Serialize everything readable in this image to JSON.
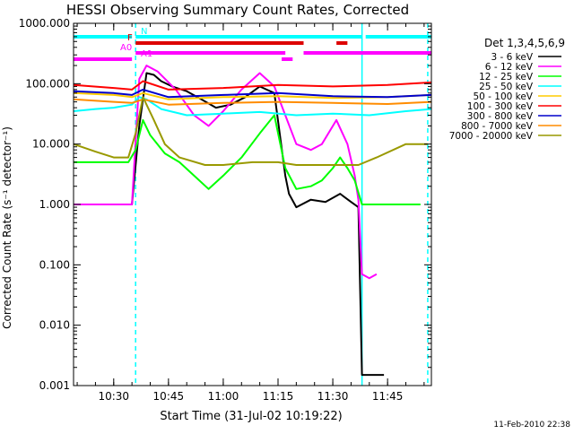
{
  "chart_data": {
    "type": "line",
    "title": "HESSI Observing Summary Count Rates, Corrected",
    "xlabel": "Start Time (31-Jul-02 10:19:22)",
    "ylabel": "Corrected Count Rate (s⁻¹ detector⁻¹)",
    "yscale": "log",
    "ylim": [
      0.001,
      1000
    ],
    "xlim": [
      "10:19",
      "11:57"
    ],
    "x_ticks": [
      "10:30",
      "10:45",
      "11:00",
      "11:15",
      "11:30",
      "11:45"
    ],
    "y_ticks": [
      "1000.000",
      "100.000",
      "10.000",
      "1.000",
      "0.100",
      "0.010",
      "0.001"
    ],
    "footer": "11-Feb-2010 22:38",
    "legend": {
      "title": "Det 1,3,4,5,6,9",
      "placement": "right-outside"
    },
    "series": [
      {
        "name": "3 - 6 keV",
        "color": "#000000",
        "x": [
          "10:33",
          "10:35",
          "10:37",
          "10:39",
          "10:41",
          "10:43",
          "10:46",
          "10:50",
          "10:54",
          "10:58",
          "11:02",
          "11:06",
          "11:10",
          "11:14",
          "11:17",
          "11:18",
          "11:20",
          "11:24",
          "11:28",
          "11:32",
          "11:35",
          "11:37",
          "11:38",
          "11:42",
          "11:44"
        ],
        "y": [
          1.0,
          1.0,
          20,
          150,
          140,
          110,
          90,
          75,
          55,
          40,
          45,
          60,
          90,
          70,
          3.0,
          1.5,
          0.9,
          1.2,
          1.1,
          1.5,
          1.1,
          0.9,
          0.0015,
          0.0015,
          0.0015
        ]
      },
      {
        "name": "6 - 12 keV",
        "color": "#ff00ff",
        "x": [
          "10:19",
          "10:30",
          "10:35",
          "10:37",
          "10:39",
          "10:42",
          "10:47",
          "10:52",
          "10:56",
          "11:00",
          "11:05",
          "11:10",
          "11:14",
          "11:17",
          "11:20",
          "11:24",
          "11:27",
          "11:31",
          "11:34",
          "11:36",
          "11:37",
          "11:38",
          "11:40",
          "11:42"
        ],
        "y": [
          1.0,
          1.0,
          1.0,
          120,
          200,
          160,
          80,
          30,
          20,
          35,
          80,
          150,
          90,
          30,
          10,
          8,
          10,
          25,
          10,
          3,
          1.2,
          0.07,
          0.06,
          0.07
        ]
      },
      {
        "name": "12 - 25 keV",
        "color": "#00ff00",
        "x": [
          "10:19",
          "10:25",
          "10:30",
          "10:34",
          "10:36",
          "10:38",
          "10:40",
          "10:44",
          "10:48",
          "10:52",
          "10:56",
          "11:00",
          "11:05",
          "11:10",
          "11:14",
          "11:17",
          "11:20",
          "11:24",
          "11:27",
          "11:30",
          "11:32",
          "11:34",
          "11:36",
          "11:38",
          "11:42",
          "11:50",
          "11:54"
        ],
        "y": [
          5,
          5,
          5,
          5,
          8,
          25,
          14,
          7,
          5,
          3,
          1.8,
          3,
          6,
          15,
          30,
          4,
          1.8,
          2,
          2.5,
          4,
          6,
          4,
          2.5,
          1.0,
          1.0,
          1.0,
          1.0
        ]
      },
      {
        "name": "25 - 50 keV",
        "color": "#00ffff",
        "x": [
          "10:19",
          "10:25",
          "10:30",
          "10:35",
          "10:37",
          "10:39",
          "10:43",
          "10:50",
          "11:00",
          "11:10",
          "11:20",
          "11:30",
          "11:40",
          "11:50",
          "11:57"
        ],
        "y": [
          35,
          38,
          40,
          45,
          60,
          55,
          38,
          30,
          32,
          34,
          30,
          32,
          30,
          35,
          38
        ]
      },
      {
        "name": "50 - 100 keV",
        "color": "#ffcc00",
        "x": [
          "10:19",
          "10:30",
          "10:35",
          "10:38",
          "10:45",
          "11:00",
          "11:15",
          "11:30",
          "11:45",
          "11:57"
        ],
        "y": [
          70,
          65,
          60,
          70,
          55,
          60,
          62,
          58,
          60,
          65
        ]
      },
      {
        "name": "100 - 300 keV",
        "color": "#ff0000",
        "x": [
          "10:19",
          "10:30",
          "10:35",
          "10:38",
          "10:45",
          "11:00",
          "11:15",
          "11:30",
          "11:45",
          "11:57"
        ],
        "y": [
          95,
          85,
          80,
          110,
          80,
          85,
          95,
          90,
          95,
          105
        ]
      },
      {
        "name": "300 - 800 keV",
        "color": "#0000cc",
        "x": [
          "10:19",
          "10:30",
          "10:35",
          "10:38",
          "10:45",
          "11:00",
          "11:15",
          "11:30",
          "11:45",
          "11:57"
        ],
        "y": [
          75,
          70,
          65,
          80,
          60,
          65,
          70,
          62,
          60,
          65
        ]
      },
      {
        "name": "800 - 7000 keV",
        "color": "#ff8c00",
        "x": [
          "10:19",
          "10:30",
          "10:35",
          "10:38",
          "10:45",
          "11:00",
          "11:15",
          "11:30",
          "11:45",
          "11:57"
        ],
        "y": [
          55,
          50,
          48,
          55,
          45,
          48,
          50,
          48,
          46,
          50
        ]
      },
      {
        "name": "7000 - 20000 keV",
        "color": "#999900",
        "x": [
          "10:19",
          "10:25",
          "10:30",
          "10:34",
          "10:36",
          "10:38",
          "10:41",
          "10:44",
          "10:48",
          "10:55",
          "11:00",
          "11:08",
          "11:15",
          "11:20",
          "11:28",
          "11:33",
          "11:37",
          "11:42",
          "11:50",
          "11:56"
        ],
        "y": [
          10,
          7.5,
          6,
          6,
          15,
          60,
          25,
          10,
          6,
          4.5,
          4.5,
          5,
          5,
          4.5,
          4.5,
          4.5,
          4.5,
          6,
          10,
          10
        ]
      }
    ],
    "flag_bars": [
      {
        "label": "N",
        "color": "#00ffff",
        "level": 1,
        "segments": [
          [
            "10:19",
            "10:35"
          ],
          [
            "10:36",
            "11:38"
          ],
          [
            "11:39",
            "11:57"
          ]
        ]
      },
      {
        "label": "F",
        "color": "#dd0000",
        "level": 2,
        "segments": [
          [
            "10:36",
            "11:22"
          ],
          [
            "11:31",
            "11:34"
          ]
        ]
      },
      {
        "label": "A0",
        "color": "#ff00ff",
        "level": 3,
        "segments": [
          [
            "10:36",
            "11:17"
          ],
          [
            "11:22",
            "11:57"
          ]
        ]
      },
      {
        "label": "A1",
        "color": "#ff00ff",
        "level": 4,
        "segments": [
          [
            "10:19",
            "10:35"
          ],
          [
            "11:16",
            "11:19"
          ]
        ]
      }
    ],
    "vertical_markers": [
      {
        "x": "10:36",
        "style": "dashed",
        "color": "#00ffff"
      },
      {
        "x": "11:38",
        "style": "solid",
        "color": "#00ffff"
      },
      {
        "x": "11:56",
        "style": "dashed",
        "color": "#00ffff"
      }
    ]
  }
}
